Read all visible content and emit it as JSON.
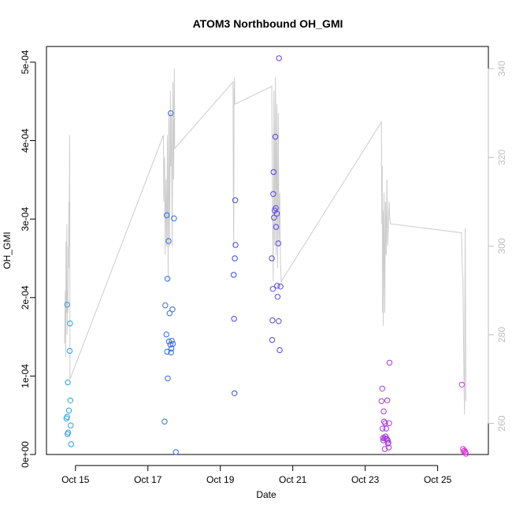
{
  "chart_data": {
    "type": "scatter",
    "title": "ATOM3 Northbound OH_GMI",
    "xlabel": "Date",
    "ylabel": "OH_GMI",
    "x_unit": "days (October)",
    "xlim": [
      14.2,
      26.4
    ],
    "ylim": [
      0,
      0.00052
    ],
    "x_ticks": [
      {
        "value": 15,
        "label": "Oct 15"
      },
      {
        "value": 17,
        "label": "Oct 17"
      },
      {
        "value": 19,
        "label": "Oct 19"
      },
      {
        "value": 21,
        "label": "Oct 21"
      },
      {
        "value": 23,
        "label": "Oct 23"
      },
      {
        "value": 25,
        "label": "Oct 25"
      }
    ],
    "y_ticks": [
      {
        "value": 0,
        "label": "0e+00"
      },
      {
        "value": 0.0001,
        "label": "1e-04"
      },
      {
        "value": 0.0002,
        "label": "2e-04"
      },
      {
        "value": 0.0003,
        "label": "3e-04"
      },
      {
        "value": 0.0004,
        "label": "4e-04"
      },
      {
        "value": 0.0005,
        "label": "5e-04"
      }
    ],
    "y2lim": [
      253,
      345
    ],
    "y2_ticks": [
      {
        "value": 260,
        "label": "260"
      },
      {
        "value": 280,
        "label": "280"
      },
      {
        "value": 300,
        "label": "300"
      },
      {
        "value": 320,
        "label": "320"
      },
      {
        "value": 340,
        "label": "340"
      }
    ],
    "grid": false,
    "legend": "none",
    "colors": {
      "points_start": "#29a3e6",
      "points_mid": "#3a48e8",
      "points_end": "#e030d8",
      "line": "#cccccc",
      "right_axis": "#bdbdbd"
    },
    "points": [
      [
        14.77,
        0.000191
      ],
      [
        14.79,
        9.2e-05
      ],
      [
        14.75,
        4.6e-05
      ],
      [
        14.77,
        4.8e-05
      ],
      [
        14.78,
        2.6e-05
      ],
      [
        14.8,
        2.8e-05
      ],
      [
        14.82,
        5.6e-05
      ],
      [
        14.84,
        0.000132
      ],
      [
        14.85,
        0.000167
      ],
      [
        14.86,
        6.9e-05
      ],
      [
        14.87,
        3.7e-05
      ],
      [
        14.88,
        1.3e-05
      ],
      [
        17.46,
        4.2e-05
      ],
      [
        17.48,
        0.00019
      ],
      [
        17.51,
        0.000153
      ],
      [
        17.52,
        0.000305
      ],
      [
        17.53,
        0.000131
      ],
      [
        17.54,
        0.000224
      ],
      [
        17.55,
        9.7e-05
      ],
      [
        17.57,
        0.000272
      ],
      [
        17.58,
        0.000144
      ],
      [
        17.6,
        0.00018
      ],
      [
        17.62,
        0.00014
      ],
      [
        17.63,
        0.000435
      ],
      [
        17.64,
        0.00013
      ],
      [
        17.65,
        0.000135
      ],
      [
        17.66,
        0.000145
      ],
      [
        17.68,
        0.000185
      ],
      [
        17.69,
        0.000141
      ],
      [
        17.72,
        0.000301
      ],
      [
        17.77,
        3e-06
      ],
      [
        19.37,
        0.000229
      ],
      [
        19.39,
        7.8e-05
      ],
      [
        19.38,
        0.000173
      ],
      [
        19.4,
        0.00025
      ],
      [
        19.41,
        0.000324
      ],
      [
        19.42,
        0.000267
      ],
      [
        20.42,
        0.00025
      ],
      [
        20.43,
        0.000146
      ],
      [
        20.44,
        0.000171
      ],
      [
        20.45,
        0.000211
      ],
      [
        20.46,
        0.000332
      ],
      [
        20.47,
        0.00036
      ],
      [
        20.48,
        0.000302
      ],
      [
        20.5,
        0.000311
      ],
      [
        20.52,
        0.000405
      ],
      [
        20.53,
        0.000314
      ],
      [
        20.54,
        0.00029
      ],
      [
        20.56,
        0.000307
      ],
      [
        20.57,
        0.000215
      ],
      [
        20.58,
        0.000201
      ],
      [
        20.6,
        0.000269
      ],
      [
        20.61,
        0.00017
      ],
      [
        20.62,
        0.000505
      ],
      [
        20.64,
        0.000133
      ],
      [
        20.66,
        0.000214
      ],
      [
        23.45,
        6.8e-05
      ],
      [
        23.47,
        8.4e-05
      ],
      [
        23.48,
        3.3e-05
      ],
      [
        23.49,
        2.1e-05
      ],
      [
        23.5,
        1.8e-05
      ],
      [
        23.51,
        5.5e-05
      ],
      [
        23.52,
        4.2e-05
      ],
      [
        23.53,
        2.1e-05
      ],
      [
        23.54,
        7e-06
      ],
      [
        23.55,
        4e-05
      ],
      [
        23.56,
        2.3e-05
      ],
      [
        23.57,
        2e-05
      ],
      [
        23.58,
        3.3e-05
      ],
      [
        23.6,
        2e-05
      ],
      [
        23.61,
        6.9e-05
      ],
      [
        23.62,
        1.8e-05
      ],
      [
        23.63,
        1.4e-05
      ],
      [
        23.64,
        1.5e-05
      ],
      [
        23.65,
        9e-06
      ],
      [
        23.66,
        4e-05
      ],
      [
        23.67,
        0.000117
      ],
      [
        25.67,
        8.9e-05
      ],
      [
        25.7,
        7e-06
      ],
      [
        25.72,
        4e-06
      ],
      [
        25.74,
        5e-06
      ],
      [
        25.76,
        3e-06
      ],
      [
        25.78,
        1e-06
      ]
    ],
    "line": [
      [
        14.7,
        278
      ],
      [
        14.72,
        290
      ],
      [
        14.73,
        275
      ],
      [
        14.74,
        301
      ],
      [
        14.75,
        285
      ],
      [
        14.76,
        305
      ],
      [
        14.77,
        280
      ],
      [
        14.78,
        290
      ],
      [
        14.79,
        285
      ],
      [
        14.8,
        300
      ],
      [
        14.81,
        295
      ],
      [
        14.82,
        310
      ],
      [
        14.83,
        300
      ],
      [
        14.84,
        325
      ],
      [
        14.85,
        270
      ],
      [
        17.43,
        325
      ],
      [
        17.44,
        310
      ],
      [
        17.46,
        320
      ],
      [
        17.48,
        298
      ],
      [
        17.5,
        315
      ],
      [
        17.52,
        300
      ],
      [
        17.54,
        325
      ],
      [
        17.56,
        292
      ],
      [
        17.58,
        330
      ],
      [
        17.6,
        300
      ],
      [
        17.62,
        335
      ],
      [
        17.63,
        318
      ],
      [
        17.65,
        330
      ],
      [
        17.67,
        300
      ],
      [
        17.69,
        337
      ],
      [
        17.71,
        315
      ],
      [
        17.73,
        340
      ],
      [
        17.74,
        322
      ],
      [
        19.35,
        337
      ],
      [
        19.36,
        310
      ],
      [
        19.37,
        300
      ],
      [
        19.38,
        335
      ],
      [
        19.39,
        338
      ],
      [
        19.4,
        332
      ],
      [
        20.42,
        336
      ],
      [
        20.44,
        310
      ],
      [
        20.46,
        292
      ],
      [
        20.48,
        335
      ],
      [
        20.5,
        300
      ],
      [
        20.52,
        338
      ],
      [
        20.54,
        298
      ],
      [
        20.56,
        332
      ],
      [
        20.58,
        295
      ],
      [
        20.6,
        330
      ],
      [
        20.62,
        300
      ],
      [
        20.64,
        312
      ],
      [
        20.66,
        296
      ],
      [
        20.68,
        292
      ],
      [
        23.45,
        328
      ],
      [
        23.46,
        305
      ],
      [
        23.47,
        318
      ],
      [
        23.48,
        285
      ],
      [
        23.49,
        308
      ],
      [
        23.5,
        282
      ],
      [
        23.52,
        312
      ],
      [
        23.54,
        285
      ],
      [
        23.56,
        310
      ],
      [
        23.58,
        298
      ],
      [
        23.6,
        315
      ],
      [
        23.62,
        300
      ],
      [
        23.64,
        305
      ],
      [
        23.66,
        310
      ],
      [
        23.68,
        306
      ],
      [
        23.7,
        305
      ],
      [
        25.66,
        303
      ],
      [
        25.68,
        295
      ],
      [
        25.7,
        292
      ],
      [
        25.72,
        275
      ],
      [
        25.74,
        262
      ],
      [
        25.76,
        304
      ],
      [
        25.78,
        265
      ]
    ]
  }
}
